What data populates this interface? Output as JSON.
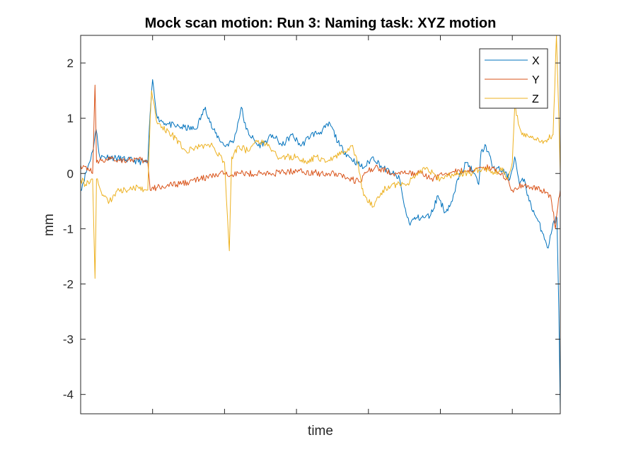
{
  "chart_data": {
    "type": "line",
    "title": "Mock scan motion: Run 3: Naming task: XYZ motion",
    "xlabel": "time",
    "ylabel": "mm",
    "xlim": [
      0,
      1000
    ],
    "ylim": [
      -4.35,
      2.5
    ],
    "yticks": [
      2,
      1,
      0,
      -1,
      -2,
      -3,
      -4
    ],
    "ytick_labels": [
      "2",
      "1",
      "0",
      "-1",
      "-2",
      "-3",
      "-4"
    ],
    "xticks": [
      0,
      150,
      300,
      450,
      600,
      750,
      900,
      1000
    ],
    "xtick_labels": [],
    "grid": false,
    "legend": {
      "position": "top-right"
    },
    "series": [
      {
        "name": "X",
        "color": "#0072BD",
        "points": [
          [
            0,
            -0.3
          ],
          [
            25,
            0.4
          ],
          [
            32,
            0.8
          ],
          [
            40,
            0.3
          ],
          [
            60,
            0.3
          ],
          [
            95,
            0.25
          ],
          [
            140,
            0.2
          ],
          [
            145,
            1.1
          ],
          [
            150,
            1.7
          ],
          [
            160,
            1.0
          ],
          [
            180,
            0.9
          ],
          [
            200,
            0.85
          ],
          [
            240,
            0.8
          ],
          [
            260,
            1.2
          ],
          [
            275,
            0.8
          ],
          [
            300,
            0.5
          ],
          [
            320,
            0.6
          ],
          [
            335,
            1.2
          ],
          [
            345,
            0.8
          ],
          [
            370,
            0.5
          ],
          [
            390,
            0.6
          ],
          [
            400,
            0.7
          ],
          [
            420,
            0.5
          ],
          [
            440,
            0.7
          ],
          [
            460,
            0.5
          ],
          [
            480,
            0.7
          ],
          [
            500,
            0.75
          ],
          [
            520,
            0.9
          ],
          [
            540,
            0.5
          ],
          [
            560,
            0.3
          ],
          [
            590,
            0.1
          ],
          [
            610,
            0.3
          ],
          [
            630,
            0.1
          ],
          [
            650,
            0.0
          ],
          [
            665,
            -0.1
          ],
          [
            675,
            -0.6
          ],
          [
            685,
            -0.9
          ],
          [
            700,
            -0.8
          ],
          [
            715,
            -0.8
          ],
          [
            730,
            -0.75
          ],
          [
            745,
            -0.4
          ],
          [
            760,
            -0.7
          ],
          [
            775,
            -0.5
          ],
          [
            790,
            0.0
          ],
          [
            805,
            0.2
          ],
          [
            820,
            0.0
          ],
          [
            830,
            -0.2
          ],
          [
            835,
            0.4
          ],
          [
            845,
            0.5
          ],
          [
            860,
            0.1
          ],
          [
            880,
            0.05
          ],
          [
            895,
            -0.1
          ],
          [
            905,
            0.3
          ],
          [
            915,
            -0.2
          ],
          [
            925,
            -0.1
          ],
          [
            935,
            -0.5
          ],
          [
            950,
            -0.8
          ],
          [
            965,
            -1.1
          ],
          [
            975,
            -1.35
          ],
          [
            985,
            -0.9
          ],
          [
            993,
            -0.8
          ],
          [
            997,
            -2.5
          ],
          [
            1000,
            -4.3
          ]
        ]
      },
      {
        "name": "Y",
        "color": "#D95319",
        "points": [
          [
            0,
            0.15
          ],
          [
            15,
            0.1
          ],
          [
            25,
            0.0
          ],
          [
            30,
            1.6
          ],
          [
            33,
            0.2
          ],
          [
            45,
            0.25
          ],
          [
            60,
            0.25
          ],
          [
            100,
            0.25
          ],
          [
            120,
            0.25
          ],
          [
            140,
            0.2
          ],
          [
            145,
            -0.3
          ],
          [
            160,
            -0.25
          ],
          [
            200,
            -0.2
          ],
          [
            250,
            -0.1
          ],
          [
            300,
            0.0
          ],
          [
            330,
            0.0
          ],
          [
            350,
            0.0
          ],
          [
            400,
            0.0
          ],
          [
            450,
            0.05
          ],
          [
            500,
            0.0
          ],
          [
            540,
            0.0
          ],
          [
            560,
            -0.1
          ],
          [
            580,
            -0.15
          ],
          [
            600,
            0.05
          ],
          [
            620,
            0.1
          ],
          [
            650,
            0.0
          ],
          [
            680,
            0.0
          ],
          [
            710,
            0.0
          ],
          [
            730,
            -0.1
          ],
          [
            760,
            0.0
          ],
          [
            800,
            0.05
          ],
          [
            830,
            0.1
          ],
          [
            860,
            0.1
          ],
          [
            880,
            0.0
          ],
          [
            900,
            -0.3
          ],
          [
            920,
            -0.2
          ],
          [
            940,
            -0.25
          ],
          [
            960,
            -0.3
          ],
          [
            980,
            -0.4
          ],
          [
            990,
            -1.0
          ],
          [
            995,
            -0.6
          ],
          [
            1000,
            -0.3
          ]
        ]
      },
      {
        "name": "Z",
        "color": "#EDB120",
        "points": [
          [
            0,
            -0.1
          ],
          [
            10,
            -0.2
          ],
          [
            25,
            -0.1
          ],
          [
            30,
            -1.9
          ],
          [
            33,
            -0.1
          ],
          [
            45,
            -0.4
          ],
          [
            60,
            -0.5
          ],
          [
            80,
            -0.3
          ],
          [
            100,
            -0.3
          ],
          [
            120,
            -0.25
          ],
          [
            140,
            -0.3
          ],
          [
            145,
            1.0
          ],
          [
            148,
            1.5
          ],
          [
            160,
            0.9
          ],
          [
            190,
            0.7
          ],
          [
            220,
            0.4
          ],
          [
            250,
            0.5
          ],
          [
            275,
            0.5
          ],
          [
            300,
            0.2
          ],
          [
            310,
            -1.4
          ],
          [
            315,
            0.3
          ],
          [
            330,
            0.5
          ],
          [
            350,
            0.4
          ],
          [
            370,
            0.6
          ],
          [
            390,
            0.5
          ],
          [
            410,
            0.3
          ],
          [
            430,
            0.3
          ],
          [
            450,
            0.3
          ],
          [
            470,
            0.2
          ],
          [
            490,
            0.3
          ],
          [
            510,
            0.2
          ],
          [
            550,
            0.4
          ],
          [
            565,
            0.5
          ],
          [
            575,
            0.3
          ],
          [
            590,
            -0.4
          ],
          [
            610,
            -0.6
          ],
          [
            630,
            -0.3
          ],
          [
            660,
            -0.2
          ],
          [
            680,
            -0.2
          ],
          [
            700,
            0.0
          ],
          [
            720,
            0.1
          ],
          [
            750,
            -0.1
          ],
          [
            780,
            0.0
          ],
          [
            810,
            0.0
          ],
          [
            840,
            0.1
          ],
          [
            870,
            0.0
          ],
          [
            880,
            0.1
          ],
          [
            890,
            -0.1
          ],
          [
            900,
            0.2
          ],
          [
            905,
            1.2
          ],
          [
            920,
            0.7
          ],
          [
            950,
            0.6
          ],
          [
            970,
            0.6
          ],
          [
            985,
            0.7
          ],
          [
            992,
            2.5
          ],
          [
            997,
            1.0
          ],
          [
            1000,
            0.0
          ]
        ]
      }
    ]
  }
}
